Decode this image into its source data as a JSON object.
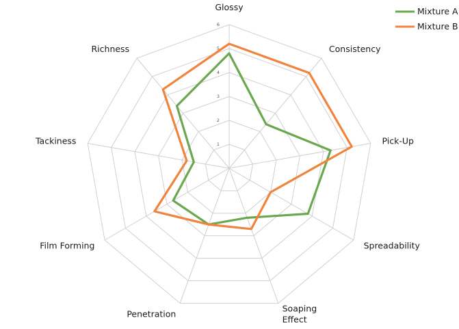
{
  "chart_data": {
    "type": "radar",
    "title": "",
    "categories": [
      "Glossy",
      "Consistency",
      "Pick-Up",
      "Spreadability",
      "Soaping Effect",
      "Penetration",
      "Film Forming",
      "Tackiness",
      "Richness"
    ],
    "rlim": [
      0,
      6
    ],
    "ticks": [
      "1",
      "2",
      "3",
      "4",
      "5",
      "6"
    ],
    "grid": true,
    "legend_position": "top-right",
    "series": [
      {
        "name": "Mixture A",
        "color": "#6aa84f",
        "values": [
          4.8,
          2.4,
          4.3,
          3.8,
          2.2,
          2.5,
          2.7,
          1.5,
          3.4
        ]
      },
      {
        "name": "Mixture B",
        "color": "#f0843c",
        "values": [
          5.2,
          5.2,
          5.2,
          2.0,
          2.7,
          2.5,
          3.6,
          1.8,
          4.3
        ]
      }
    ]
  }
}
